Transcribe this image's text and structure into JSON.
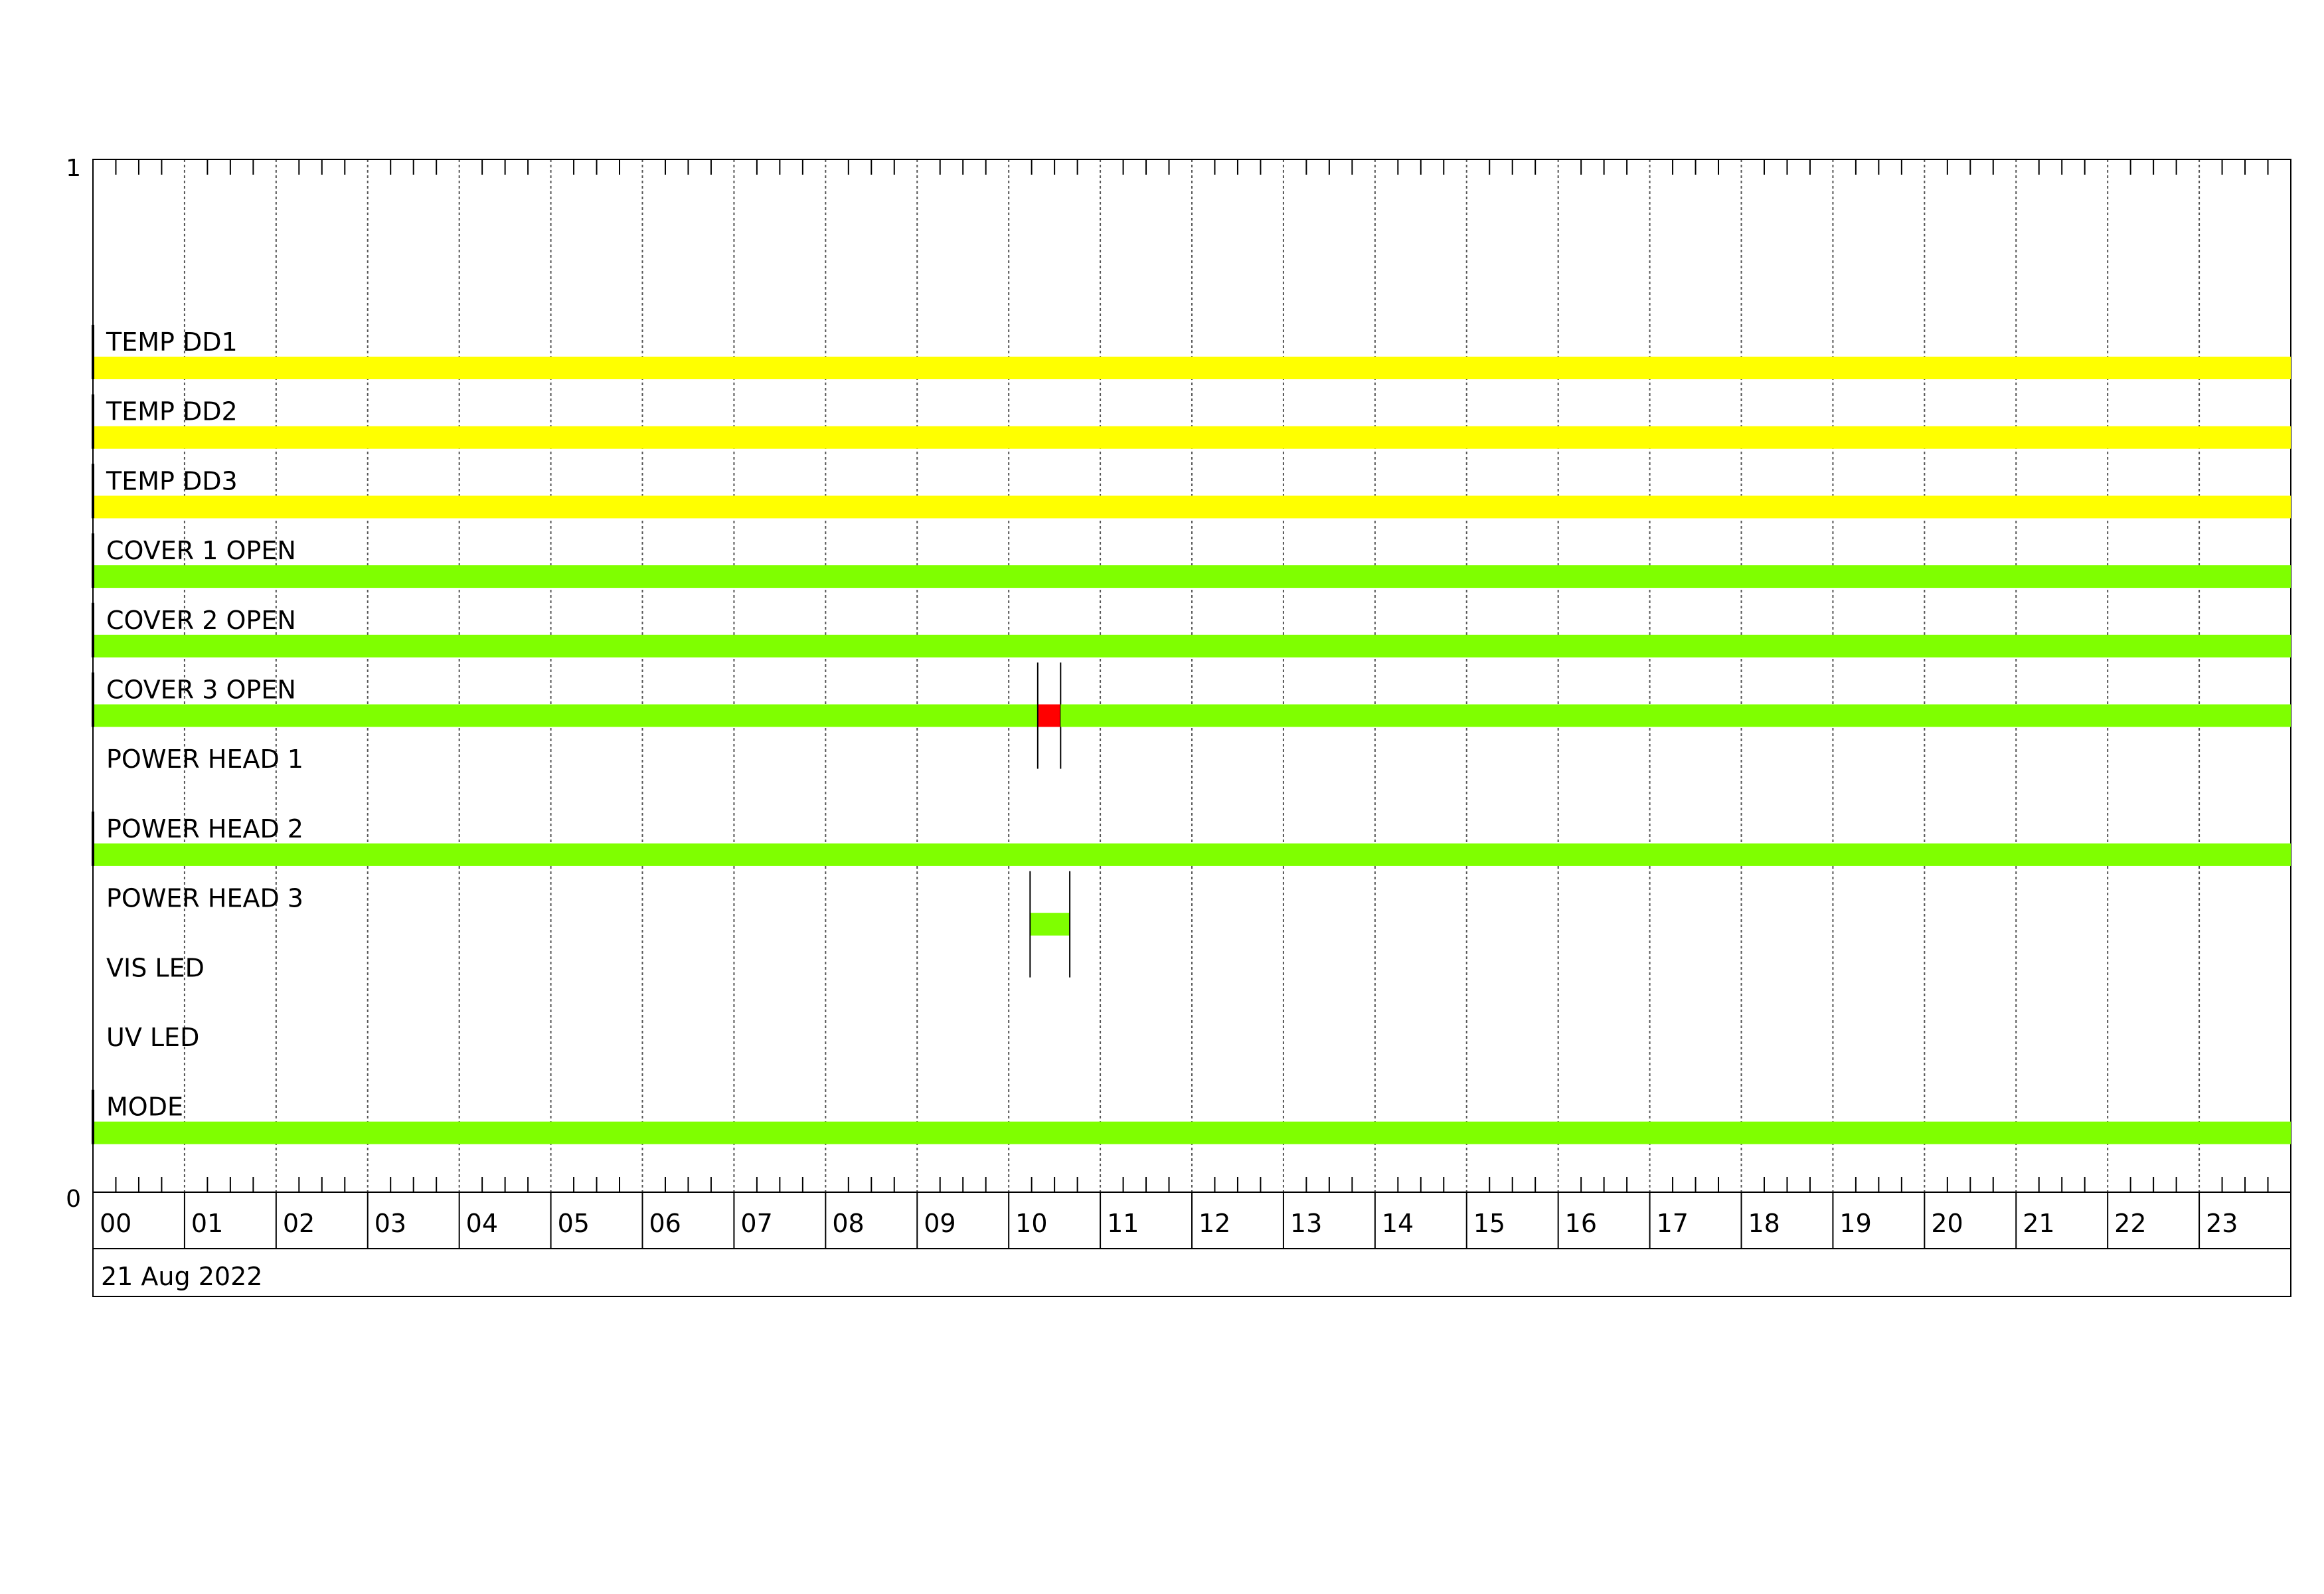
{
  "chart_data": {
    "type": "timeline",
    "title": "",
    "y_axis_ticks": [
      "1",
      "0"
    ],
    "x_tick_labels": [
      "00",
      "01",
      "02",
      "03",
      "04",
      "05",
      "06",
      "07",
      "08",
      "09",
      "10",
      "11",
      "12",
      "13",
      "14",
      "15",
      "16",
      "17",
      "18",
      "19",
      "20",
      "21",
      "22",
      "23"
    ],
    "date_label": "21 Aug 2022",
    "x_range_hours": [
      0,
      24
    ],
    "minor_ticks_per_hour": 4,
    "grid": true,
    "colors": {
      "yellow": "#ffff00",
      "green": "#7fff00",
      "red": "#ff0000"
    },
    "rows": [
      {
        "label": "TEMP DD1",
        "segments": [
          {
            "start": "00:00",
            "end": "24:00",
            "color": "#ffff00"
          }
        ]
      },
      {
        "label": "TEMP DD2",
        "segments": [
          {
            "start": "00:00",
            "end": "24:00",
            "color": "#ffff00"
          }
        ]
      },
      {
        "label": "TEMP DD3",
        "segments": [
          {
            "start": "00:00",
            "end": "24:00",
            "color": "#ffff00"
          }
        ]
      },
      {
        "label": "COVER 1 OPEN",
        "segments": [
          {
            "start": "00:00",
            "end": "24:00",
            "color": "#7fff00"
          }
        ]
      },
      {
        "label": "COVER 2 OPEN",
        "segments": [
          {
            "start": "00:00",
            "end": "24:00",
            "color": "#7fff00"
          }
        ]
      },
      {
        "label": "COVER 3 OPEN",
        "segments": [
          {
            "start": "00:00",
            "end": "10:19",
            "color": "#7fff00"
          },
          {
            "start": "10:19",
            "end": "10:34",
            "color": "#ff0000"
          },
          {
            "start": "10:34",
            "end": "24:00",
            "color": "#7fff00"
          }
        ]
      },
      {
        "label": "POWER HEAD 1",
        "segments": []
      },
      {
        "label": "POWER HEAD 2",
        "segments": [
          {
            "start": "00:00",
            "end": "24:00",
            "color": "#7fff00"
          }
        ]
      },
      {
        "label": "POWER HEAD 3",
        "segments": [
          {
            "start": "10:14",
            "end": "10:40",
            "color": "#7fff00"
          }
        ]
      },
      {
        "label": "VIS LED",
        "segments": []
      },
      {
        "label": "UV LED",
        "segments": []
      },
      {
        "label": "MODE",
        "segments": [
          {
            "start": "00:00",
            "end": "24:00",
            "color": "#7fff00"
          }
        ]
      }
    ]
  }
}
